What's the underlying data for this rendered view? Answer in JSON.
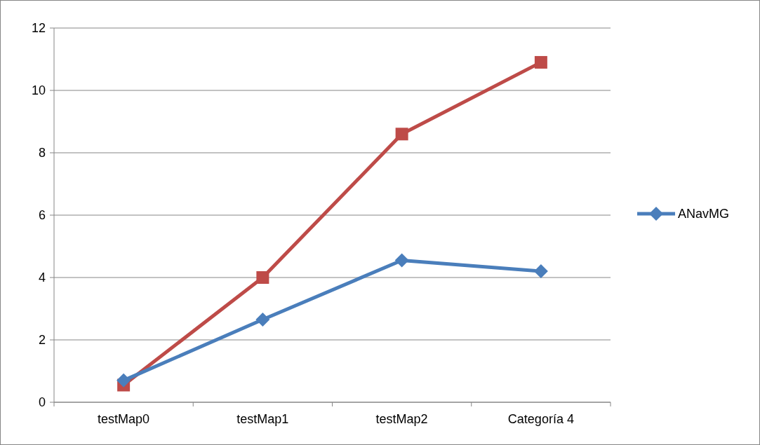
{
  "chart_data": {
    "type": "line",
    "categories": [
      "testMap0",
      "testMap1",
      "testMap2",
      "Categoría 4"
    ],
    "series": [
      {
        "name": "ANavMG",
        "color": "#4a7ebb",
        "values": [
          0.7,
          2.65,
          4.55,
          4.2
        ],
        "marker": "diamond"
      },
      {
        "color": "#be4b48",
        "values": [
          0.55,
          4.0,
          8.6,
          10.9
        ],
        "marker": "square"
      }
    ],
    "ylim": [
      0,
      12
    ],
    "yticks": [
      0,
      2,
      4,
      6,
      8,
      10,
      12
    ],
    "grid": "y",
    "legend": "right"
  }
}
